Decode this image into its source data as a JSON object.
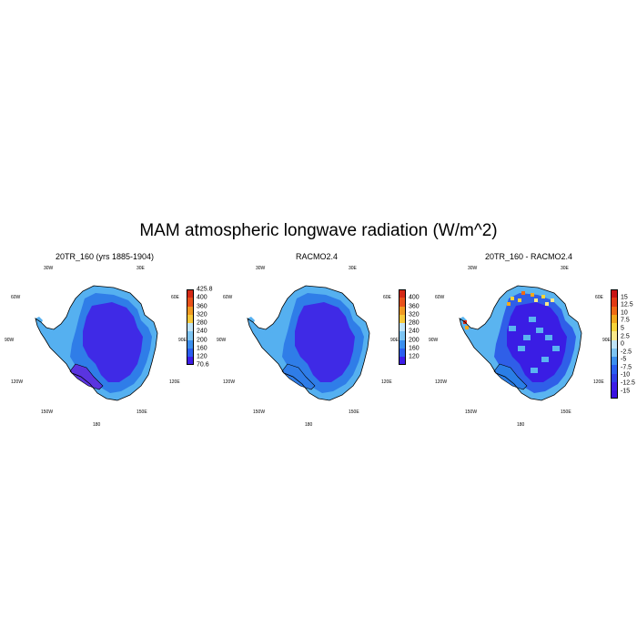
{
  "figure": {
    "title": "MAM atmospheric longwave radiation (W/m^2)"
  },
  "colors": {
    "coast": "#000000",
    "continuous_palette_low_to_high": [
      "#3d1de8",
      "#2a5cf0",
      "#1f8ef0",
      "#5ab4f0",
      "#a8d6f4",
      "#f7d43a",
      "#f2a81c",
      "#ef6a14",
      "#e32a12",
      "#c81414"
    ]
  },
  "panels": [
    {
      "title": "20TR_160 (yrs 1885-1904)",
      "lon_labels": {
        "nw": "30W",
        "ne": "30E",
        "w_top": "60W",
        "e_top": "60E",
        "w_mid": "90W",
        "e_mid": "90E",
        "w_low": "120W",
        "e_low": "120E",
        "sw": "150W",
        "se": "150E",
        "s": "180"
      },
      "colorbar": {
        "labels": [
          "425.8",
          "400",
          "360",
          "320",
          "280",
          "240",
          "200",
          "160",
          "120",
          "70.6"
        ],
        "colors": [
          "#d42a16",
          "#e8521a",
          "#f09a22",
          "#f7c93a",
          "#bfe3f7",
          "#7cc4f2",
          "#3b8fee",
          "#2a5ef0",
          "#3d1de8"
        ]
      },
      "field": {
        "interior": "#3f2ae6",
        "ring": "#2f7de8",
        "coast": "#55b0f0",
        "ice_shelf": "#5a34e0"
      }
    },
    {
      "title": "RACMO2.4",
      "lon_labels": {
        "nw": "30W",
        "ne": "30E",
        "w_top": "60W",
        "e_top": "60E",
        "w_mid": "90W",
        "e_mid": "90E",
        "w_low": "120W",
        "e_low": "120E",
        "sw": "150W",
        "se": "150E",
        "s": "180"
      },
      "colorbar": {
        "labels": [
          "400",
          "360",
          "320",
          "280",
          "240",
          "200",
          "160",
          "120"
        ],
        "colors": [
          "#d42a16",
          "#e8521a",
          "#f09a22",
          "#f7c93a",
          "#bfe3f7",
          "#7cc4f2",
          "#3b8fee",
          "#2a5ef0",
          "#3d1de8"
        ]
      },
      "field": {
        "interior": "#3f2ae6",
        "ring": "#2f7de8",
        "coast": "#55b0f0",
        "ice_shelf": "#2f7de8"
      }
    },
    {
      "title": "20TR_160 - RACMO2.4",
      "lon_labels": {
        "nw": "30W",
        "ne": "30E",
        "w_top": "60W",
        "e_top": "60E",
        "w_mid": "90W",
        "e_mid": "90E",
        "w_low": "120W",
        "e_low": "120E",
        "sw": "150W",
        "se": "150E",
        "s": "180"
      },
      "colorbar": {
        "labels": [
          "15",
          "12.5",
          "10",
          "7.5",
          "5",
          "2.5",
          "0",
          "-2.5",
          "-5",
          "-7.5",
          "-10",
          "-12.5",
          "-15"
        ],
        "colors": [
          "#c81414",
          "#e23a14",
          "#ef6a14",
          "#f2a81c",
          "#f7d43a",
          "#fbe88a",
          "#bfe3f7",
          "#7cc4f2",
          "#3b8fee",
          "#2a5ef0",
          "#2f3fe8",
          "#3d1de8",
          "#3a10e0"
        ]
      },
      "field": {
        "interior": "#3a1de4",
        "ring": "#2f5fe8",
        "coast": "#5ab4f0",
        "ice_shelf": "#2a7ee6"
      }
    }
  ]
}
